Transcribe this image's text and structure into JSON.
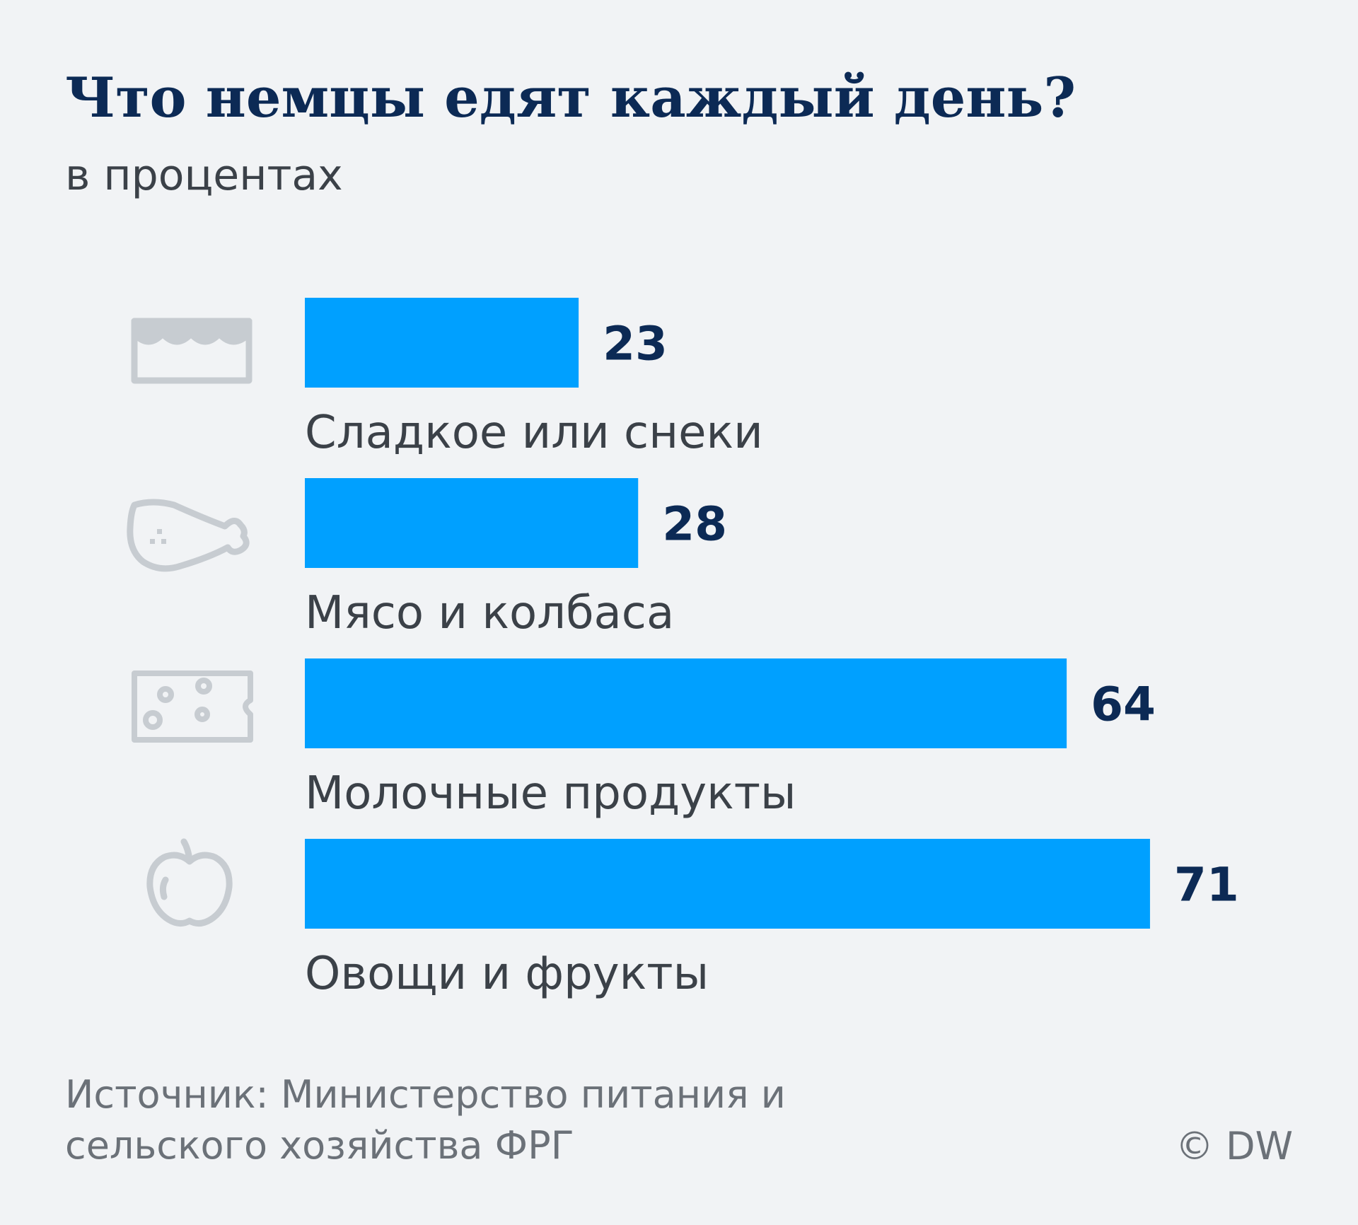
{
  "title": "Что немцы едят каждый день?",
  "subtitle": "в процентах",
  "source": {
    "line1": "Источник: Министерство питания и",
    "line2": "сельского хозяйства ФРГ"
  },
  "copyright": "© DW",
  "colors": {
    "bar": "#00a0ff",
    "value_text": "#0c2a55",
    "label_text": "#3b4148",
    "icon": "#c7ccd1",
    "background": "#f1f3f5"
  },
  "icons": [
    "cake-icon",
    "chicken-leg-icon",
    "cheese-icon",
    "apple-icon"
  ],
  "chart_data": {
    "type": "bar",
    "orientation": "horizontal",
    "categories": [
      "Сладкое или снеки",
      "Мясо и колбаса",
      "Молочные продукты",
      "Овощи и фрукты"
    ],
    "values": [
      23,
      28,
      64,
      71
    ],
    "title": "Что немцы едят каждый день?",
    "subtitle": "в процентах",
    "xlabel": "",
    "ylabel": "",
    "xlim": [
      0,
      71
    ],
    "grid": false,
    "legend": "none"
  }
}
